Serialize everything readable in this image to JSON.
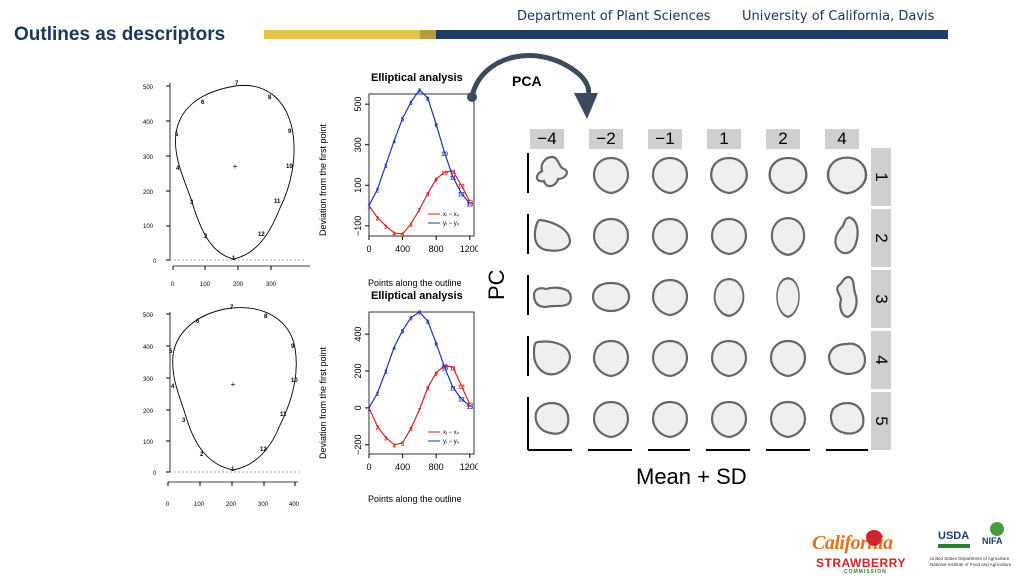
{
  "header": {
    "title": "Outlines as descriptors",
    "department": "Department of Plant Sciences",
    "university": "University of California, Davis",
    "colors": {
      "navy": "#1c3d6b",
      "gold": "#e6c24a",
      "title": "#1c3664"
    }
  },
  "outline_plots": {
    "top": {
      "y_ticks": [
        "0",
        "100",
        "200",
        "300",
        "400",
        "500"
      ],
      "x_ticks": [
        "0",
        "100",
        "200",
        "300"
      ],
      "point_labels": [
        "1",
        "2",
        "3",
        "4",
        "5",
        "6",
        "7",
        "8",
        "9",
        "10",
        "11",
        "12"
      ]
    },
    "bottom": {
      "y_ticks": [
        "0",
        "100",
        "200",
        "300",
        "400",
        "500"
      ],
      "x_ticks": [
        "0",
        "100",
        "200",
        "300",
        "400"
      ],
      "point_labels": [
        "1",
        "2",
        "3",
        "4",
        "5",
        "6",
        "7",
        "8",
        "9",
        "10",
        "11",
        "12"
      ]
    }
  },
  "chart_data": [
    {
      "type": "line",
      "title": "Elliptical analysis",
      "xlabel": "Points along the outline",
      "ylabel": "Deviation from the first point",
      "x_ticks": [
        "0",
        "400",
        "800",
        "1200"
      ],
      "y_ticks": [
        "−100",
        "100",
        "300",
        "500"
      ],
      "xlim": [
        0,
        1250
      ],
      "ylim": [
        -150,
        550
      ],
      "legend": [
        "xᵢ − x₀",
        "yᵢ − y₀"
      ],
      "legend_position": "bottom-right",
      "series": [
        {
          "name": "xᵢ − x₀",
          "color": "#d62020",
          "x": [
            0,
            100,
            200,
            300,
            400,
            500,
            600,
            700,
            800,
            900,
            1000,
            1100,
            1200
          ],
          "y": [
            0,
            -60,
            -100,
            -135,
            -140,
            -90,
            -20,
            60,
            130,
            165,
            170,
            100,
            20
          ],
          "labels": [
            "1",
            "2",
            "3",
            "4",
            "5",
            "6",
            "7",
            "8",
            "9",
            "10",
            "11",
            "12",
            "13"
          ]
        },
        {
          "name": "yᵢ − y₀",
          "color": "#2030c0",
          "x": [
            0,
            100,
            200,
            300,
            400,
            500,
            600,
            700,
            800,
            900,
            1000,
            1100,
            1200
          ],
          "y": [
            0,
            80,
            200,
            320,
            430,
            510,
            570,
            530,
            400,
            260,
            140,
            60,
            10
          ],
          "labels": [
            "1",
            "2",
            "3",
            "4",
            "5",
            "6",
            "7",
            "8",
            "9",
            "10",
            "11",
            "12",
            "13"
          ]
        }
      ]
    },
    {
      "type": "line",
      "title": "Elliptical analysis",
      "xlabel": "Points along the outline",
      "ylabel": "Deviation from the first point",
      "x_ticks": [
        "0",
        "400",
        "800",
        "1200"
      ],
      "y_ticks": [
        "−200",
        "0",
        "200",
        "400"
      ],
      "xlim": [
        0,
        1250
      ],
      "ylim": [
        -250,
        520
      ],
      "legend": [
        "xᵢ − x₀",
        "yᵢ − y₀"
      ],
      "legend_position": "bottom-right",
      "series": [
        {
          "name": "xᵢ − x₀",
          "color": "#d62020",
          "x": [
            0,
            100,
            200,
            300,
            400,
            500,
            600,
            700,
            800,
            900,
            1000,
            1100,
            1200
          ],
          "y": [
            0,
            -100,
            -160,
            -200,
            -190,
            -110,
            -10,
            110,
            190,
            230,
            220,
            120,
            20
          ],
          "labels": [
            "1",
            "2",
            "3",
            "4",
            "5",
            "6",
            "7",
            "8",
            "9",
            "10",
            "11",
            "12",
            "13"
          ]
        },
        {
          "name": "yᵢ − y₀",
          "color": "#2030c0",
          "x": [
            0,
            100,
            200,
            300,
            400,
            500,
            600,
            700,
            800,
            900,
            1000,
            1100,
            1200
          ],
          "y": [
            0,
            80,
            200,
            330,
            420,
            490,
            520,
            470,
            350,
            220,
            110,
            50,
            10
          ],
          "labels": [
            "1",
            "2",
            "3",
            "4",
            "5",
            "6",
            "7",
            "8",
            "9",
            "10",
            "11",
            "12",
            "13"
          ]
        }
      ]
    }
  ],
  "pca": {
    "arrow_label": "PCA",
    "sd_labels": [
      "−4",
      "−2",
      "−1",
      "1",
      "2",
      "4"
    ],
    "pc_labels": [
      "1",
      "2",
      "3",
      "4",
      "5"
    ],
    "y_axis_label": "PC",
    "x_axis_label": "Mean + SD"
  },
  "logos": {
    "california": "California",
    "strawberry": "STRAWBERRY",
    "commission": "COMMISSION",
    "usda": "USDA",
    "nifa": "NIFA",
    "usda_line1": "United States Department of Agriculture",
    "usda_line2": "National Institute of Food and Agriculture"
  }
}
